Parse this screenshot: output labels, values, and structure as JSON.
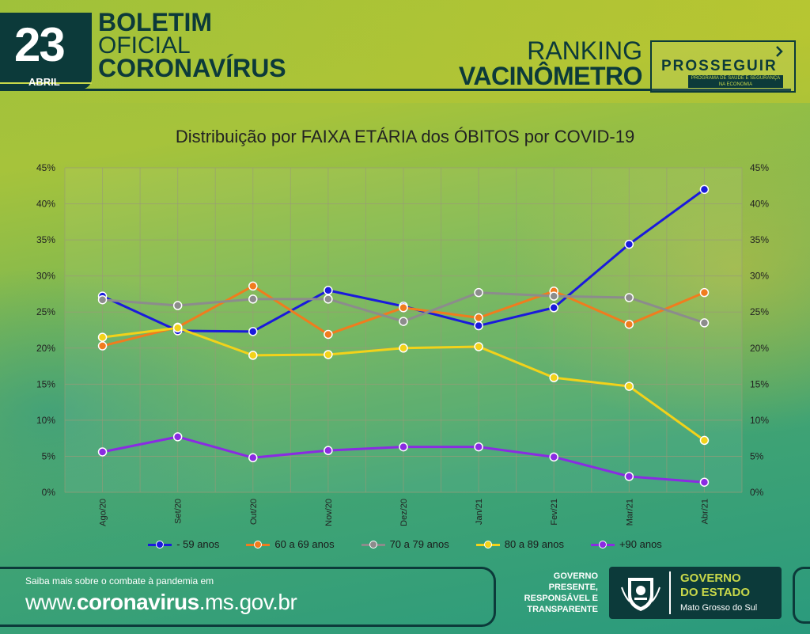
{
  "header": {
    "day": "23",
    "month": "ABRIL",
    "title_line1": "BOLETIM",
    "title_line2": "OFICIAL",
    "title_line3": "CORONAVÍRUS",
    "ranking_line1": "RANKING",
    "ranking_line2": "VACINÔMETRO",
    "program_name": "PROSSEGUIR",
    "program_subtitle": "PROGRAMA DE SAÚDE E SEGURANÇA NA ECONOMIA"
  },
  "chart_data": {
    "type": "line",
    "title": "Distribuição por FAIXA ETÁRIA dos ÓBITOS por COVID-19",
    "categories": [
      "Ago/20",
      "Set/20",
      "Out/20",
      "Nov/20",
      "Dez/20",
      "Jan/21",
      "Fev/21",
      "Mar/21",
      "Abr/21"
    ],
    "y_ticks": [
      "0%",
      "5%",
      "10%",
      "15%",
      "20%",
      "25%",
      "30%",
      "35%",
      "40%",
      "45%"
    ],
    "ylim": [
      0,
      45
    ],
    "grid": true,
    "secondary_y_axis": true,
    "legend_position": "bottom",
    "series": [
      {
        "name": "- 59 anos",
        "color": "#1a1adc",
        "values": [
          27.2,
          22.4,
          22.3,
          28.0,
          25.8,
          23.1,
          25.6,
          34.4,
          42.0
        ]
      },
      {
        "name": "60 a 69 anos",
        "color": "#f07c1e",
        "values": [
          20.3,
          22.9,
          28.6,
          21.9,
          25.6,
          24.2,
          27.9,
          23.3,
          27.7
        ]
      },
      {
        "name": "70 a 79 anos",
        "color": "#8c8c8c",
        "values": [
          26.7,
          25.9,
          26.8,
          26.8,
          23.7,
          27.7,
          27.2,
          27.0,
          23.5
        ]
      },
      {
        "name": "80 a 89 anos",
        "color": "#f2d21a",
        "values": [
          21.5,
          22.8,
          19.0,
          19.1,
          20.0,
          20.2,
          15.9,
          14.7,
          7.2
        ]
      },
      {
        "name": "+90 anos",
        "color": "#8a2be2",
        "values": [
          5.6,
          7.7,
          4.8,
          5.8,
          6.3,
          6.3,
          4.9,
          2.2,
          1.4
        ]
      }
    ]
  },
  "footer": {
    "small_text": "Saiba mais sobre o combate à pandemia em",
    "url_prefix": "www.",
    "url_bold": "coronavirus",
    "url_suffix": ".ms.gov.br",
    "gov_slogan_1": "GOVERNO",
    "gov_slogan_2": "PRESENTE,",
    "gov_slogan_3": "RESPONSÁVEL E",
    "gov_slogan_4": "TRANSPARENTE",
    "gov_name_1": "GOVERNO",
    "gov_name_2": "DO ESTADO",
    "gov_state": "Mato Grosso do Sul"
  }
}
